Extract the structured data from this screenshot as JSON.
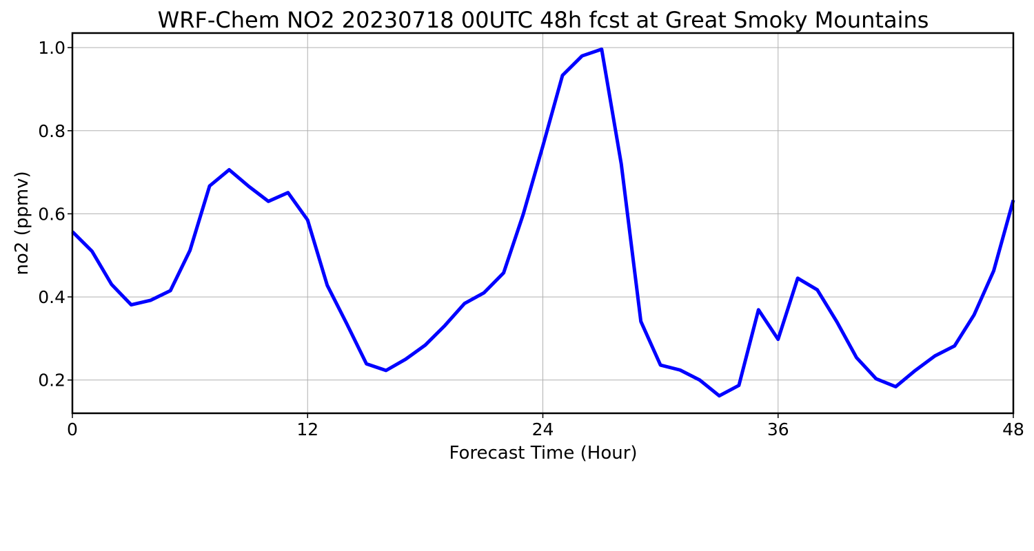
{
  "chart_data": {
    "type": "line",
    "title": "WRF-Chem NO2  20230718 00UTC 48h fcst at Great Smoky Mountains",
    "xlabel": "Forecast Time (Hour)",
    "ylabel": "no2  (ppmv)",
    "xlim": [
      0,
      48
    ],
    "ylim": [
      0.12,
      1.035
    ],
    "xticks": [
      0,
      12,
      24,
      36,
      48
    ],
    "yticks": [
      0.2,
      0.4,
      0.6,
      0.8,
      1.0
    ],
    "ytick_labels": [
      "0.2",
      "0.4",
      "0.6",
      "0.8",
      "1.0"
    ],
    "grid": true,
    "series": [
      {
        "color": "#0000ff",
        "x": [
          0,
          1,
          2,
          3,
          4,
          5,
          6,
          7,
          8,
          9,
          10,
          11,
          12,
          13,
          14,
          15,
          16,
          17,
          18,
          19,
          20,
          21,
          22,
          23,
          24,
          25,
          26,
          27,
          28,
          29,
          30,
          31,
          32,
          33,
          34,
          35,
          36,
          37,
          38,
          39,
          40,
          41,
          42,
          43,
          44,
          45,
          46,
          47,
          48
        ],
        "y": [
          0.557,
          0.51,
          0.43,
          0.381,
          0.392,
          0.415,
          0.512,
          0.667,
          0.706,
          0.666,
          0.63,
          0.651,
          0.585,
          0.428,
          0.335,
          0.239,
          0.223,
          0.25,
          0.284,
          0.331,
          0.384,
          0.41,
          0.458,
          0.599,
          0.763,
          0.933,
          0.98,
          0.996,
          0.72,
          0.341,
          0.236,
          0.224,
          0.2,
          0.162,
          0.187,
          0.369,
          0.298,
          0.445,
          0.417,
          0.34,
          0.254,
          0.203,
          0.184,
          0.223,
          0.258,
          0.282,
          0.357,
          0.463,
          0.633
        ]
      }
    ]
  }
}
